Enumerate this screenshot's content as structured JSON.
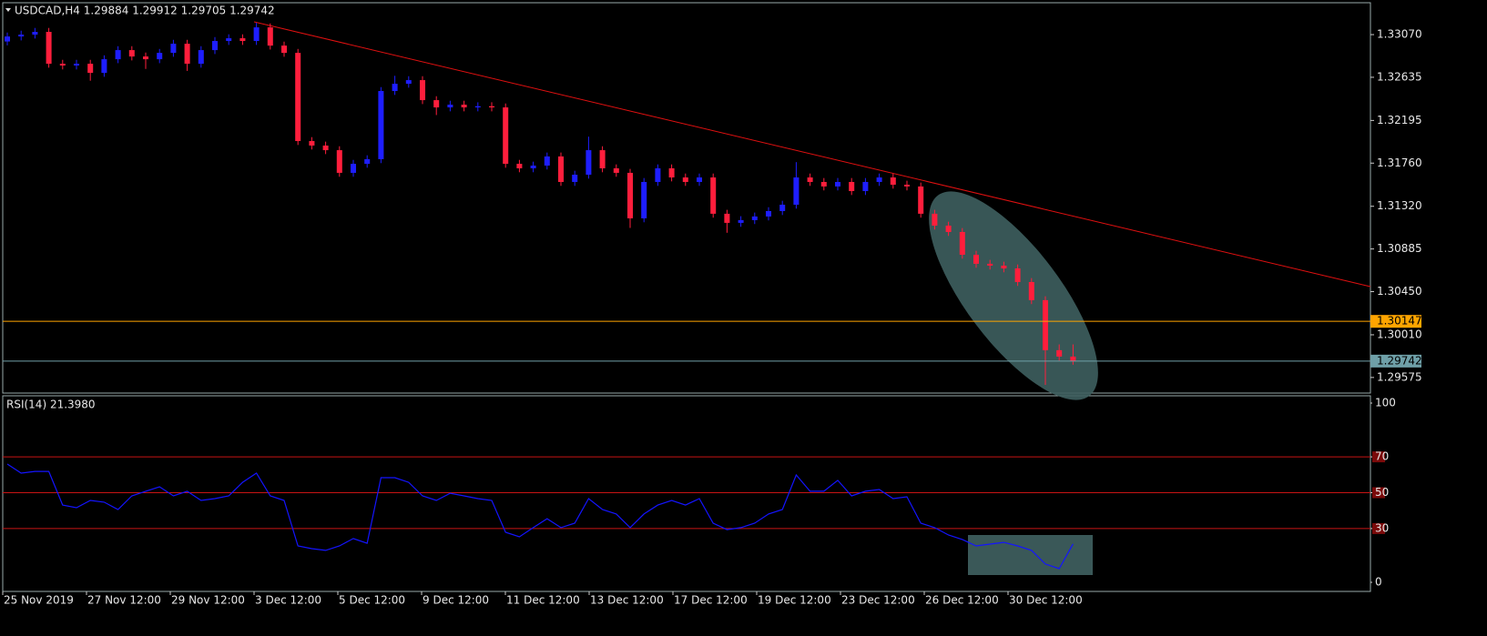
{
  "chart_data": [
    {
      "type": "candlestick",
      "title": "USDCAD,H4  1.29884 1.29912 1.29705 1.29742",
      "up_color": "#1e1eff",
      "down_color": "#ff1e3c",
      "open": [
        1.33,
        1.33051,
        1.3307,
        1.33098,
        1.32773,
        1.32755,
        1.32773,
        1.3268,
        1.32819,
        1.32912,
        1.32847,
        1.32819,
        1.32884,
        1.32977,
        1.32773,
        1.32912,
        1.33005,
        1.33033,
        1.33005,
        1.33144,
        1.32958,
        1.32884,
        1.31985,
        1.31939,
        1.31892,
        1.31661,
        1.31753,
        1.318,
        1.32495,
        1.32569,
        1.32606,
        1.32402,
        1.32328,
        1.32356,
        1.32328,
        1.3234,
        1.32328,
        1.31753,
        1.31707,
        1.31735,
        1.31828,
        1.31568,
        1.31642,
        1.31892,
        1.31707,
        1.31661,
        1.31197,
        1.31568,
        1.31707,
        1.31614,
        1.31568,
        1.31614,
        1.31244,
        1.31151,
        1.31179,
        1.31216,
        1.31271,
        1.31336,
        1.31614,
        1.31568,
        1.31522,
        1.31568,
        1.31475,
        1.31568,
        1.31614,
        1.3154,
        1.31522,
        1.31244,
        1.31123,
        1.31058,
        1.30826,
        1.30734,
        1.30715,
        1.30687,
        1.30548,
        1.30363,
        1.29853,
        1.29788
      ],
      "high": [
        1.33091,
        1.3311,
        1.33138,
        1.33138,
        1.32813,
        1.32813,
        1.32813,
        1.32859,
        1.32952,
        1.32952,
        1.32887,
        1.32924,
        1.33017,
        1.33017,
        1.32952,
        1.33045,
        1.33073,
        1.33073,
        1.3319,
        1.33184,
        1.32998,
        1.32924,
        1.32025,
        1.31979,
        1.31932,
        1.31793,
        1.3184,
        1.32535,
        1.3265,
        1.32646,
        1.32646,
        1.32442,
        1.32396,
        1.32396,
        1.3238,
        1.3238,
        1.32368,
        1.31793,
        1.31775,
        1.31868,
        1.31868,
        1.31682,
        1.3203,
        1.31932,
        1.31747,
        1.31701,
        1.31608,
        1.31747,
        1.31747,
        1.31654,
        1.31654,
        1.31654,
        1.31284,
        1.31219,
        1.31256,
        1.31311,
        1.31376,
        1.3177,
        1.31654,
        1.31608,
        1.31608,
        1.31608,
        1.31608,
        1.31654,
        1.31654,
        1.3158,
        1.31562,
        1.31284,
        1.31163,
        1.31098,
        1.30866,
        1.30774,
        1.30755,
        1.30727,
        1.30588,
        1.30403,
        1.29912,
        1.29912
      ],
      "low": [
        1.3296,
        1.33011,
        1.3303,
        1.32733,
        1.32715,
        1.32715,
        1.326,
        1.3264,
        1.32779,
        1.32807,
        1.3272,
        1.32779,
        1.32844,
        1.327,
        1.32733,
        1.32872,
        1.32965,
        1.32965,
        1.32965,
        1.32918,
        1.32844,
        1.31945,
        1.31899,
        1.31852,
        1.31621,
        1.31621,
        1.31713,
        1.3176,
        1.32455,
        1.32529,
        1.32362,
        1.3225,
        1.32288,
        1.32288,
        1.32288,
        1.32288,
        1.31713,
        1.31667,
        1.31667,
        1.31695,
        1.31528,
        1.31528,
        1.31602,
        1.31667,
        1.31621,
        1.311,
        1.31157,
        1.31528,
        1.31574,
        1.31528,
        1.31528,
        1.31204,
        1.3105,
        1.31111,
        1.31139,
        1.31176,
        1.31231,
        1.31296,
        1.31528,
        1.31482,
        1.31482,
        1.31435,
        1.31435,
        1.31528,
        1.315,
        1.31482,
        1.31204,
        1.31083,
        1.31018,
        1.30786,
        1.30694,
        1.30675,
        1.30647,
        1.30508,
        1.30323,
        1.295,
        1.29748,
        1.29705
      ],
      "close": [
        1.33051,
        1.3307,
        1.33098,
        1.32773,
        1.32755,
        1.32773,
        1.3268,
        1.32819,
        1.32912,
        1.32847,
        1.32819,
        1.32884,
        1.32977,
        1.32773,
        1.32912,
        1.33005,
        1.33033,
        1.33005,
        1.33144,
        1.32958,
        1.32884,
        1.31985,
        1.31939,
        1.31892,
        1.31661,
        1.31753,
        1.318,
        1.32495,
        1.32569,
        1.32606,
        1.32402,
        1.32328,
        1.32356,
        1.32328,
        1.3234,
        1.32328,
        1.31753,
        1.31707,
        1.31735,
        1.31828,
        1.31568,
        1.31642,
        1.31892,
        1.31707,
        1.31661,
        1.31197,
        1.31568,
        1.31707,
        1.31614,
        1.31568,
        1.31614,
        1.31244,
        1.31151,
        1.31179,
        1.31216,
        1.31271,
        1.31336,
        1.31614,
        1.31568,
        1.31522,
        1.31568,
        1.31475,
        1.31568,
        1.31614,
        1.3154,
        1.31522,
        1.31244,
        1.31123,
        1.31058,
        1.30826,
        1.30734,
        1.30715,
        1.30687,
        1.30548,
        1.30363,
        1.29853,
        1.29788,
        1.29742
      ],
      "ylim": [
        1.29416,
        1.33395
      ],
      "yticks": [
        {
          "value": 1.3307,
          "label": "1.33070"
        },
        1.32635,
        1.32195,
        {
          "value": 1.3176,
          "label": "1.31760"
        },
        {
          "value": 1.3132,
          "label": "1.31320"
        },
        1.30885,
        {
          "value": 1.3045,
          "label": "1.30450"
        },
        {
          "value": 1.3001,
          "label": "1.30010"
        },
        1.29575
      ],
      "hlines": [
        {
          "value": 1.30147,
          "color": "#ffa500"
        },
        {
          "value": 1.29742,
          "color": "#6fa0a8"
        }
      ]
    },
    {
      "type": "line",
      "title": "RSI(14) 21.3980",
      "color": "#1414ff",
      "values": [
        66.0,
        60.9,
        61.9,
        61.9,
        43.1,
        41.6,
        45.7,
        44.7,
        40.6,
        48.2,
        50.8,
        53.3,
        48.2,
        50.8,
        45.7,
        46.7,
        48.2,
        55.8,
        60.9,
        48.2,
        45.7,
        20.3,
        18.8,
        17.8,
        20.3,
        24.4,
        21.8,
        58.4,
        58.4,
        55.8,
        48.2,
        45.7,
        49.7,
        48.2,
        46.7,
        45.7,
        27.9,
        25.4,
        30.5,
        35.5,
        30.5,
        33.0,
        46.7,
        40.6,
        38.1,
        30.5,
        38.1,
        43.1,
        45.7,
        43.1,
        46.7,
        33.0,
        29.4,
        30.5,
        33.0,
        38.1,
        40.6,
        59.9,
        50.8,
        50.8,
        56.9,
        48.2,
        50.8,
        51.8,
        46.7,
        47.7,
        33.0,
        30.5,
        26.4,
        23.9,
        20.3,
        21.3,
        22.3,
        20.3,
        17.8,
        10.2,
        7.6,
        21.4
      ],
      "ylim": [
        0,
        100
      ],
      "yticks": [
        0,
        30,
        50,
        70,
        100
      ],
      "levels": [
        70,
        50,
        30
      ],
      "level_color": "#c81414",
      "x_labels": [
        "25 Nov 2019",
        "27 Nov 12:00",
        "29 Nov 12:00",
        "3 Dec 12:00",
        "5 Dec 12:00",
        "9 Dec 12:00",
        "11 Dec 12:00",
        "13 Dec 12:00",
        "17 Dec 12:00",
        "19 Dec 12:00",
        "23 Dec 12:00",
        "26 Dec 12:00",
        "30 Dec 12:00"
      ]
    }
  ]
}
